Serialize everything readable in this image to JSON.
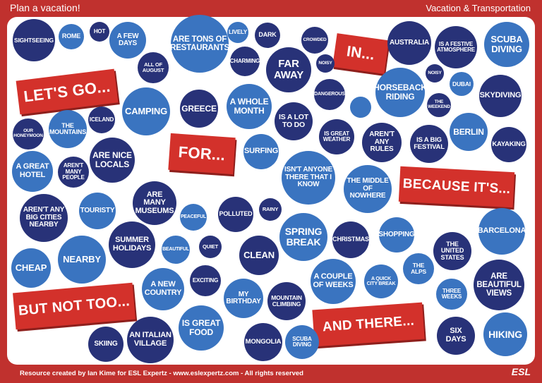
{
  "header": {
    "title": "Plan a vacation!",
    "category": "Vacation & Transportation"
  },
  "footer": {
    "credit": "Resource created by Ian Kime for ESL Expertz - www.eslexpertz.com - All rights reserved",
    "logo": "ESL"
  },
  "ribbons": [
    "LET'S GO...",
    "FOR...",
    "IN...",
    "BECAUSE IT'S...",
    "BUT NOT TOO...",
    "AND THERE..."
  ],
  "bubbles": [
    "SIGHTSEEING",
    "ROME",
    "HOT",
    "A FEW DAYS",
    "ARE TONS OF RESTAURANTS",
    "LIVELY",
    "DARK",
    "CROWDED",
    "AUSTRALIA",
    "IS A FESTIVE ATMOSPHERE",
    "SCUBA DIVING",
    "ALL OF AUGUST",
    "CHARMING",
    "FAR AWAY",
    "NOISY",
    "HORSEBACK RIDING",
    "NOISY",
    "DUBAI",
    "SKYDIVING",
    "DANGEROUS",
    "THE WEEKEND",
    "CAMPING",
    "GREECE",
    "A WHOLE MONTH",
    "IS A LOT TO DO",
    "ICELAND",
    "OUR HONEYMOON",
    "THE MOUNTAINS",
    "IS GREAT WEATHER",
    "AREN'T ANY RULES",
    "IS A BIG FESTIVAL",
    "BERLIN",
    "KAYAKING",
    "ARE NICE LOCALS",
    "SURFING",
    "A GREAT HOTEL",
    "AREN'T MANY PEOPLE",
    "ISN'T ANYONE THERE THAT I KNOW",
    "THE MIDDLE OF NOWHERE",
    "ARE MANY MUSEUMS",
    "AREN'T ANY BIG CITIES NEARBY",
    "TOURISTY",
    "PEACEFUL",
    "POLLUTED",
    "RAINY",
    "SPRING BREAK",
    "CHRISTMAS",
    "SHOPPING",
    "BARCELONA",
    "SUMMER HOLIDAYS",
    "BEAUTIFUL",
    "QUIET",
    "CHEAP",
    "NEARBY",
    "CLEAN",
    "THE UNITED STATES",
    "THE ALPS",
    "A COUPLE OF WEEKS",
    "A QUICK CITY BREAK",
    "ARE BEAUTIFUL VIEWS",
    "A NEW COUNTRY",
    "EXCITING",
    "MY BIRTHDAY",
    "MOUNTAIN CLIMBING",
    "THREE WEEKS",
    "IS GREAT FOOD",
    "SKIING",
    "AN ITALIAN VILLAGE",
    "MONGOLIA",
    "SCUBA DIVING",
    "SIX DAYS",
    "HIKING",
    ""
  ]
}
